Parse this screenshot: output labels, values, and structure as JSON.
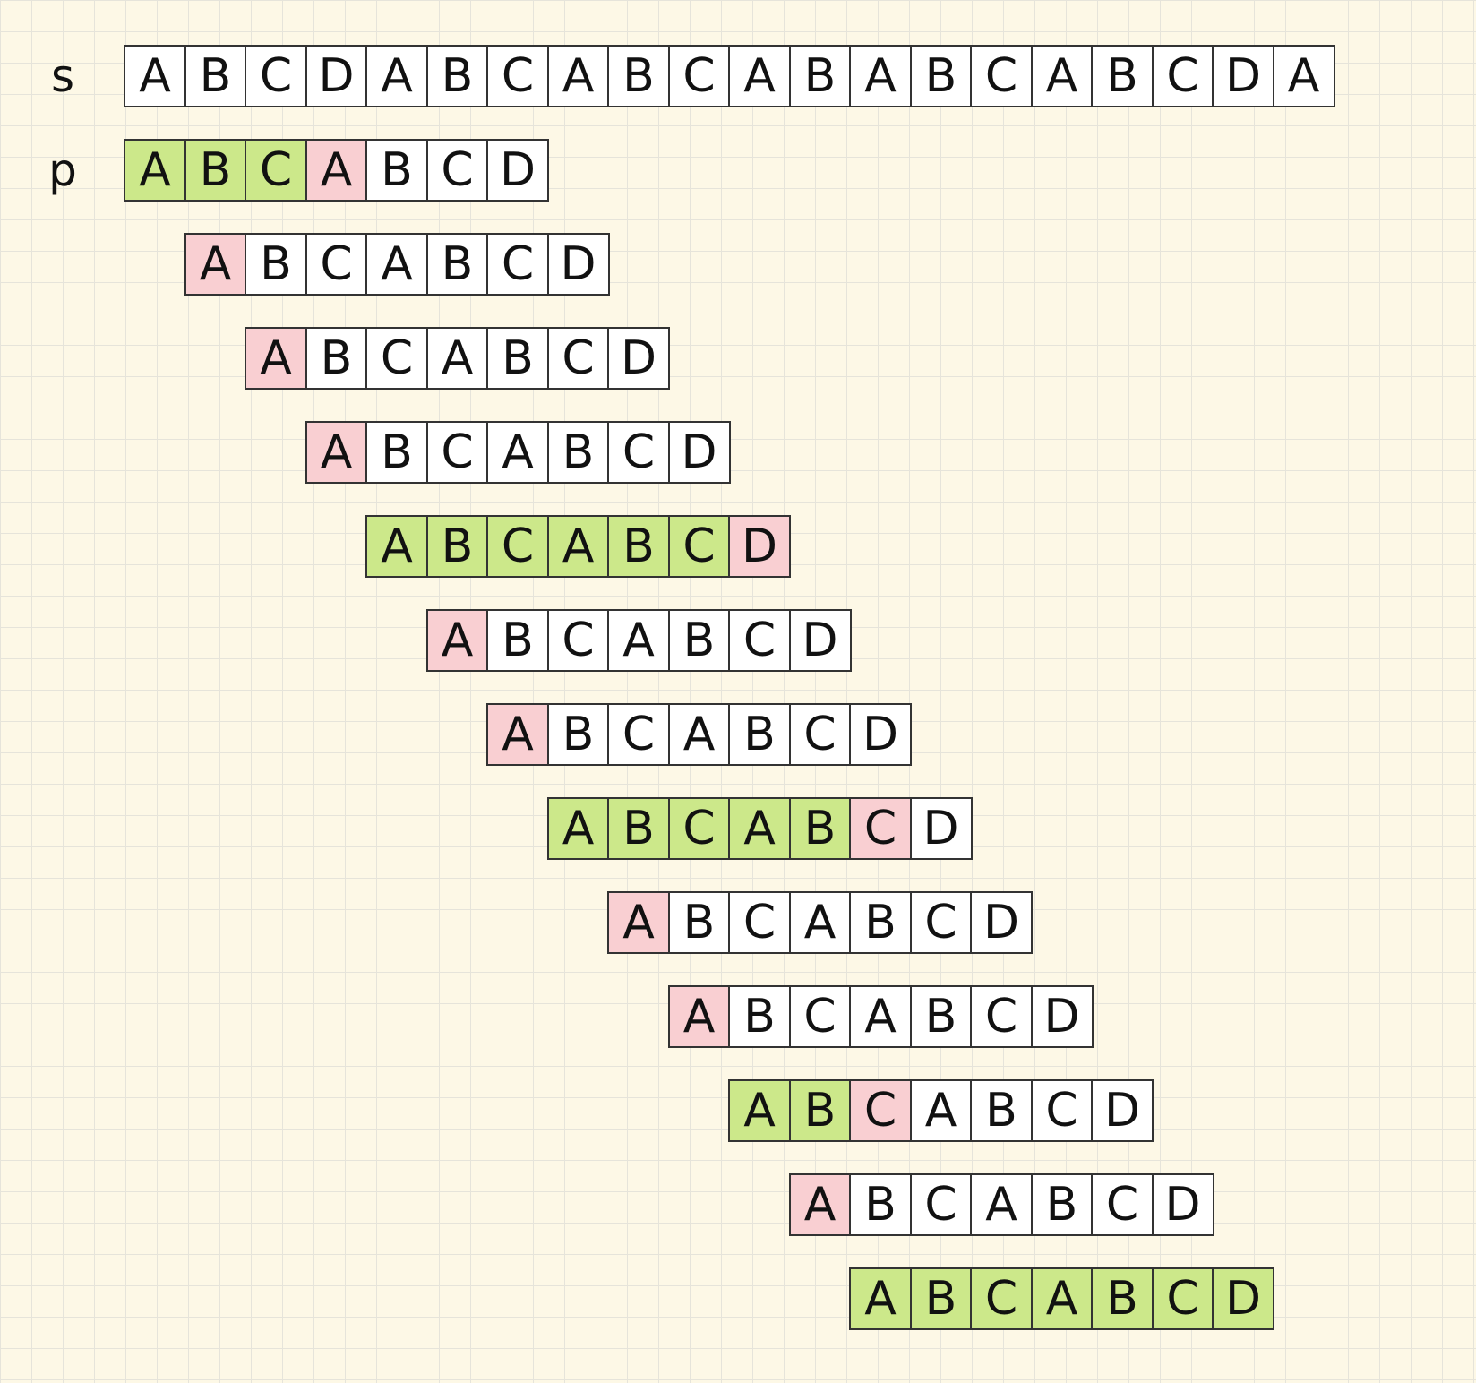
{
  "colors": {
    "match": "#cce88a",
    "mismatch": "#f9cfd2",
    "empty": "#ffffff",
    "border": "#333333"
  },
  "s": {
    "label": "s",
    "chars": [
      "A",
      "B",
      "C",
      "D",
      "A",
      "B",
      "C",
      "A",
      "B",
      "C",
      "A",
      "B",
      "A",
      "B",
      "C",
      "A",
      "B",
      "C",
      "D",
      "A"
    ]
  },
  "p_label": "p",
  "pattern": [
    "A",
    "B",
    "C",
    "A",
    "B",
    "C",
    "D"
  ],
  "alignments": [
    {
      "shift": 0,
      "states": [
        "match",
        "match",
        "match",
        "mismatch",
        "empty",
        "empty",
        "empty"
      ]
    },
    {
      "shift": 1,
      "states": [
        "mismatch",
        "empty",
        "empty",
        "empty",
        "empty",
        "empty",
        "empty"
      ]
    },
    {
      "shift": 2,
      "states": [
        "mismatch",
        "empty",
        "empty",
        "empty",
        "empty",
        "empty",
        "empty"
      ]
    },
    {
      "shift": 3,
      "states": [
        "mismatch",
        "empty",
        "empty",
        "empty",
        "empty",
        "empty",
        "empty"
      ]
    },
    {
      "shift": 4,
      "states": [
        "match",
        "match",
        "match",
        "match",
        "match",
        "match",
        "mismatch"
      ]
    },
    {
      "shift": 5,
      "states": [
        "mismatch",
        "empty",
        "empty",
        "empty",
        "empty",
        "empty",
        "empty"
      ]
    },
    {
      "shift": 6,
      "states": [
        "mismatch",
        "empty",
        "empty",
        "empty",
        "empty",
        "empty",
        "empty"
      ]
    },
    {
      "shift": 7,
      "states": [
        "match",
        "match",
        "match",
        "match",
        "match",
        "mismatch",
        "empty"
      ]
    },
    {
      "shift": 8,
      "states": [
        "mismatch",
        "empty",
        "empty",
        "empty",
        "empty",
        "empty",
        "empty"
      ]
    },
    {
      "shift": 9,
      "states": [
        "mismatch",
        "empty",
        "empty",
        "empty",
        "empty",
        "empty",
        "empty"
      ]
    },
    {
      "shift": 10,
      "states": [
        "match",
        "match",
        "mismatch",
        "empty",
        "empty",
        "empty",
        "empty"
      ]
    },
    {
      "shift": 11,
      "states": [
        "mismatch",
        "empty",
        "empty",
        "empty",
        "empty",
        "empty",
        "empty"
      ]
    },
    {
      "shift": 12,
      "states": [
        "match",
        "match",
        "match",
        "match",
        "match",
        "match",
        "match"
      ]
    }
  ]
}
